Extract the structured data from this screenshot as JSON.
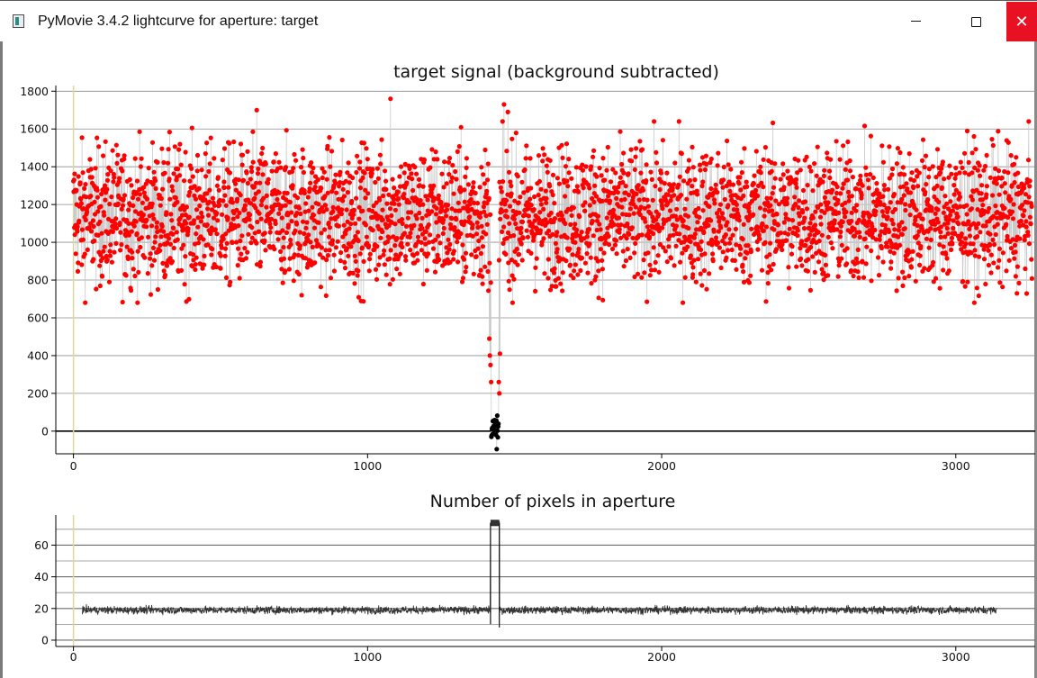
{
  "window": {
    "title": "PyMovie 3.4.2 lightcurve for aperture: target",
    "controls": {
      "minimize": "minimize",
      "maximize": "maximize",
      "close": "✕"
    }
  },
  "colors": {
    "signal_points": "#ff0000",
    "occulted_points": "#000000",
    "connecting_line": "#c8c8c8",
    "pixel_trace": "#333333",
    "start_marker": "#d8d8a0",
    "close_button": "#e81123"
  },
  "chart_data": [
    {
      "type": "scatter",
      "title": "target signal (background subtracted)",
      "xlim": [
        -60,
        3270
      ],
      "ylim": [
        -120,
        1830
      ],
      "x_ticks": [
        0,
        1000,
        2000,
        3000
      ],
      "x_tick_labels": [
        "0",
        "1000",
        "2000",
        "3000"
      ],
      "y_ticks": [
        0,
        200,
        400,
        600,
        800,
        1000,
        1200,
        1400,
        1600,
        1800
      ],
      "y_tick_labels": [
        "0",
        "200",
        "400",
        "600",
        "800",
        "1000",
        "1200",
        "1400",
        "1600",
        "1800"
      ],
      "grid": true,
      "n_frames": 3260,
      "baseline": {
        "mean": 1140,
        "spread": 180,
        "min": 680,
        "max": 1760
      },
      "occultation": {
        "start_frame": 1420,
        "end_frame": 1445,
        "level": 0,
        "spread": 45
      },
      "transition_points": [
        {
          "x": 1414,
          "y": 490
        },
        {
          "x": 1416,
          "y": 400
        },
        {
          "x": 1418,
          "y": 350
        },
        {
          "x": 1420,
          "y": 260
        },
        {
          "x": 1446,
          "y": 260
        },
        {
          "x": 1448,
          "y": 200
        },
        {
          "x": 1450,
          "y": 410
        }
      ],
      "highlight_points": [
        {
          "x": 1078,
          "y": 1760
        },
        {
          "x": 1464,
          "y": 1730
        },
        {
          "x": 1477,
          "y": 1690
        },
        {
          "x": 623,
          "y": 1700
        }
      ]
    },
    {
      "type": "line",
      "title": "Number of pixels in aperture",
      "xlim": [
        -60,
        3270
      ],
      "ylim": [
        -4,
        79
      ],
      "x_ticks": [
        0,
        1000,
        2000,
        3000
      ],
      "x_tick_labels": [
        "0",
        "1000",
        "2000",
        "3000"
      ],
      "y_ticks": [
        0,
        20,
        40,
        60
      ],
      "y_tick_labels": [
        "0",
        "20",
        "40",
        "60"
      ],
      "grid": true,
      "baseline": {
        "level": 19,
        "spread": 1.2
      },
      "occultation_block": {
        "start_frame": 1418,
        "end_frame": 1448,
        "level": 74,
        "floor": 10
      }
    }
  ]
}
